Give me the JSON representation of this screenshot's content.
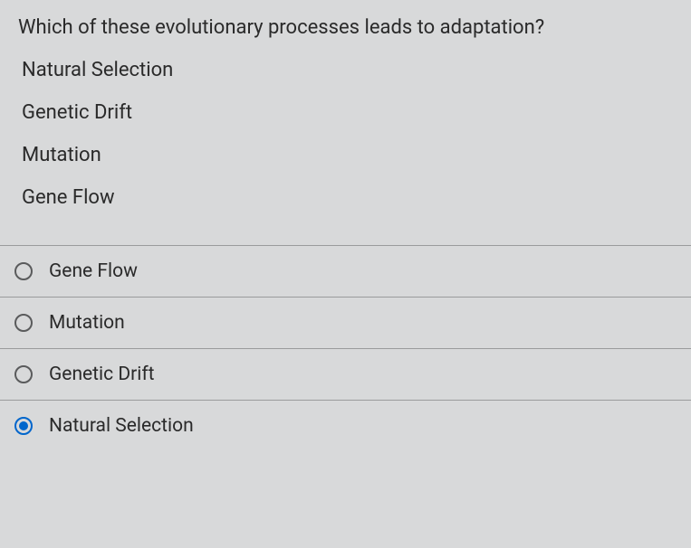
{
  "question": {
    "prompt": "Which of these evolutionary processes leads to adaptation?",
    "context_items": [
      "Natural Selection",
      "Genetic Drift",
      "Mutation",
      "Gene Flow"
    ]
  },
  "options": [
    {
      "label": "Gene Flow",
      "selected": false
    },
    {
      "label": "Mutation",
      "selected": false
    },
    {
      "label": "Genetic Drift",
      "selected": false
    },
    {
      "label": "Natural Selection",
      "selected": true
    }
  ],
  "colors": {
    "background": "#d8d9da",
    "text": "#2a2a2a",
    "border": "#9a9b9c",
    "radio_border": "#5a5b5c",
    "radio_selected": "#0066cc"
  }
}
